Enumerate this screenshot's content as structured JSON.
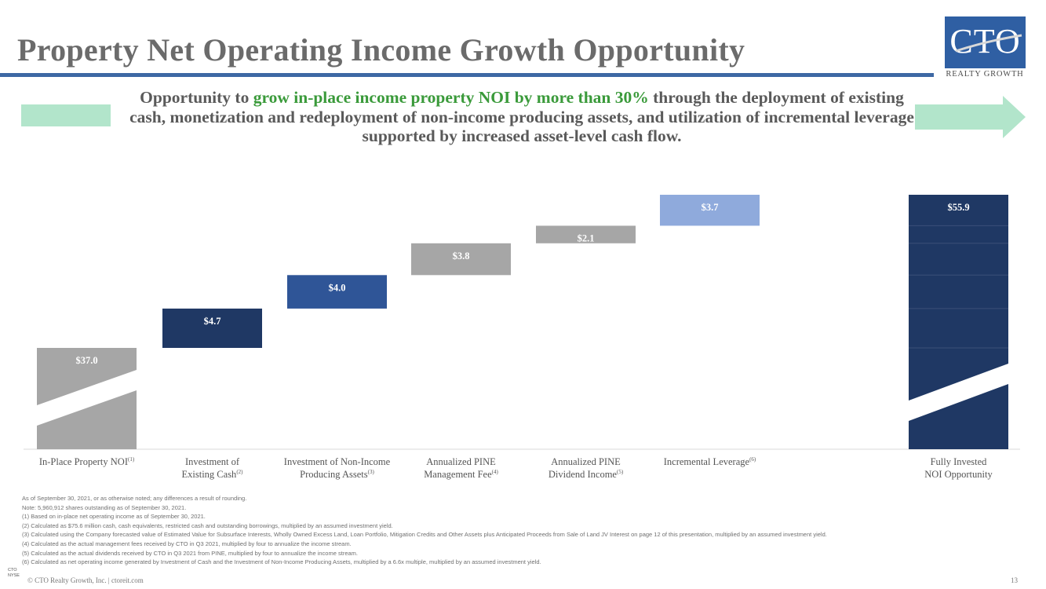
{
  "header": {
    "title": "Property Net Operating Income Growth Opportunity",
    "logo_text": "CTO",
    "logo_sub": "REALTY GROWTH"
  },
  "headline": {
    "part1": "Opportunity to ",
    "highlight": "grow in-place income property NOI by more than 30%",
    "part2": " through the deployment of existing cash, monetization and redeployment of non-income producing assets, and utilization of incremental leverage supported by increased asset-level cash flow."
  },
  "colors": {
    "title_rule": "#3d68a4",
    "highlight_green": "#3a9a3a",
    "arrow": "#b2e5cb",
    "gray": "#a6a6a6",
    "navy": "#1f3864",
    "blue": "#2f5597",
    "light_blue": "#8faadc"
  },
  "chart_data": {
    "type": "bar",
    "subtype": "waterfall",
    "categories": [
      {
        "line1": "In-Place Property NOI",
        "sup1": "(1)",
        "line2": "",
        "sup2": ""
      },
      {
        "line1": "Investment of",
        "sup1": "",
        "line2": "Existing Cash",
        "sup2": "(2)"
      },
      {
        "line1": "Investment of Non-Income",
        "sup1": "",
        "line2": "Producing Assets",
        "sup2": "(3)"
      },
      {
        "line1": "Annualized PINE",
        "sup1": "",
        "line2": "Management Fee",
        "sup2": "(4)"
      },
      {
        "line1": "Annualized PINE",
        "sup1": "",
        "line2": "Dividend Income",
        "sup2": "(5)"
      },
      {
        "line1": "Incremental Leverage",
        "sup1": "(6)",
        "line2": "",
        "sup2": ""
      },
      {
        "line1": "Fully Invested",
        "sup1": "",
        "line2": "NOI Opportunity",
        "sup2": ""
      }
    ],
    "values": [
      37.0,
      4.7,
      4.0,
      3.8,
      2.1,
      3.7,
      55.9
    ],
    "labels": [
      "$37.0",
      "$4.7",
      "$4.0",
      "$3.8",
      "$2.1",
      "$3.7",
      "$55.9"
    ],
    "axis_break": true,
    "ylim": [
      0,
      55.9
    ]
  },
  "notes": [
    "As of September 30, 2021, or as otherwise noted; any differences a result of rounding.",
    "Note: 5,960,912 shares outstanding as of September 30, 2021.",
    "(1)   Based on in-place net operating income as of September 30, 2021.",
    "(2)   Calculated as $75.6 million cash, cash equivalents, restricted cash and outstanding borrowings, multiplied by an assumed investment yield.",
    "(3)   Calculated using the Company forecasted value of Estimated Value for Subsurface Interests, Wholly Owned Excess Land, Loan Portfolio, Mitigation Credits and Other Assets plus Anticipated Proceeds from Sale of Land JV Interest on page 12 of this presentation, multiplied by an assumed investment yield.",
    "(4)   Calculated as the actual management fees received by CTO in Q3 2021, multiplied by four to annualize the income stream.",
    "(5)   Calculated as the actual dividends received by CTO in Q3 2021 from PINE, multiplied by four to annualize the income stream.",
    "(6)   Calculated as net operating income generated by Investment of Cash and the Investment of Non-Income Producing Assets, multiplied by a 6.6x multiple, multiplied by an assumed investment yield."
  ],
  "footer": {
    "text": "© CTO Realty Growth, Inc. | ctoreit.com",
    "page": "13",
    "small_logo_top": "CTO",
    "small_logo_bottom": "NYSE"
  }
}
